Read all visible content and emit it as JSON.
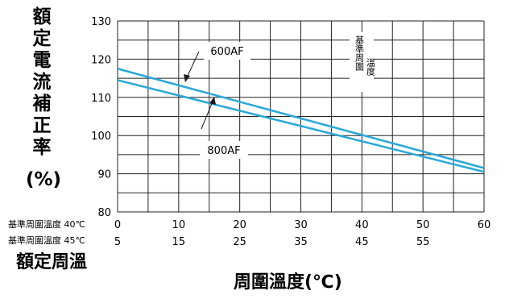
{
  "chart_data": {
    "type": "line",
    "y_axis_label": "額定電流補正率 (%)",
    "x_axis_label": "周圍溫度(℃)",
    "rated_ambient_label": "額定周溫",
    "reference_note": "基準周圍溫度",
    "xlim": [
      0,
      60
    ],
    "ylim": [
      80,
      130
    ],
    "x_ticks": [
      0,
      10,
      20,
      30,
      40,
      50,
      60
    ],
    "y_ticks": [
      80,
      90,
      100,
      110,
      120,
      130
    ],
    "secondary_x_ticks": [
      5,
      15,
      25,
      35,
      45,
      55
    ],
    "row1_label": "基準周圍溫度 40℃",
    "row2_label": "基準周圍溫度 45℃",
    "grid": true,
    "line_color": "#2aa8d9",
    "series": [
      {
        "name": "600AF",
        "x": [
          0,
          60
        ],
        "y": [
          117.5,
          91.5
        ]
      },
      {
        "name": "800AF",
        "x": [
          0,
          60
        ],
        "y": [
          114.5,
          90.5
        ]
      }
    ]
  }
}
